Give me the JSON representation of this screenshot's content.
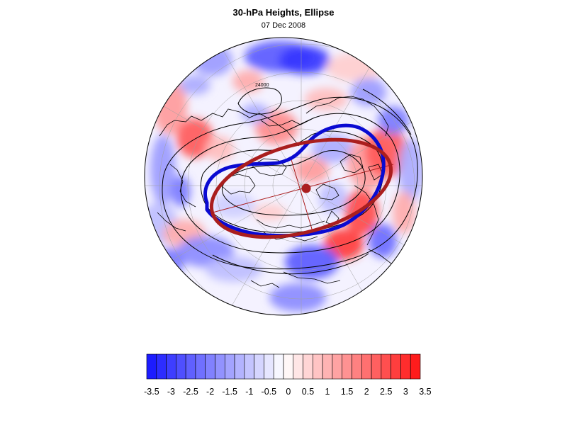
{
  "title": "30-hPa Heights, Ellipse",
  "subtitle": "07 Dec 2008",
  "colors": {
    "anomaly_negative_max": "#1414ff",
    "anomaly_neutral": "#ffffff",
    "anomaly_positive_max": "#ff1414",
    "observed_vortex_edge": "#0a0ad2",
    "fitted_ellipse": "#aa1e1e",
    "height_contours": "#000000",
    "coastlines": "#000000",
    "graticule": "#a0a0a0"
  },
  "colorbar": {
    "levels": [
      -3.5,
      -3.25,
      -3,
      -2.75,
      -2.5,
      -2.25,
      -2,
      -1.75,
      -1.5,
      -1.25,
      -1,
      -0.75,
      -0.5,
      -0.25,
      0,
      0.25,
      0.5,
      0.75,
      1,
      1.25,
      1.5,
      1.75,
      2,
      2.25,
      2.5,
      2.75,
      3,
      3.25,
      3.5
    ],
    "tick_labels": [
      "-3.5",
      "-3",
      "-2.5",
      "-2",
      "-1.5",
      "-1",
      "-0.5",
      "0",
      "0.5",
      "1",
      "1.5",
      "2",
      "2.5",
      "3",
      "3.5"
    ]
  },
  "map": {
    "projection": "orthographic, north-polar view",
    "contour_label": "24000"
  }
}
